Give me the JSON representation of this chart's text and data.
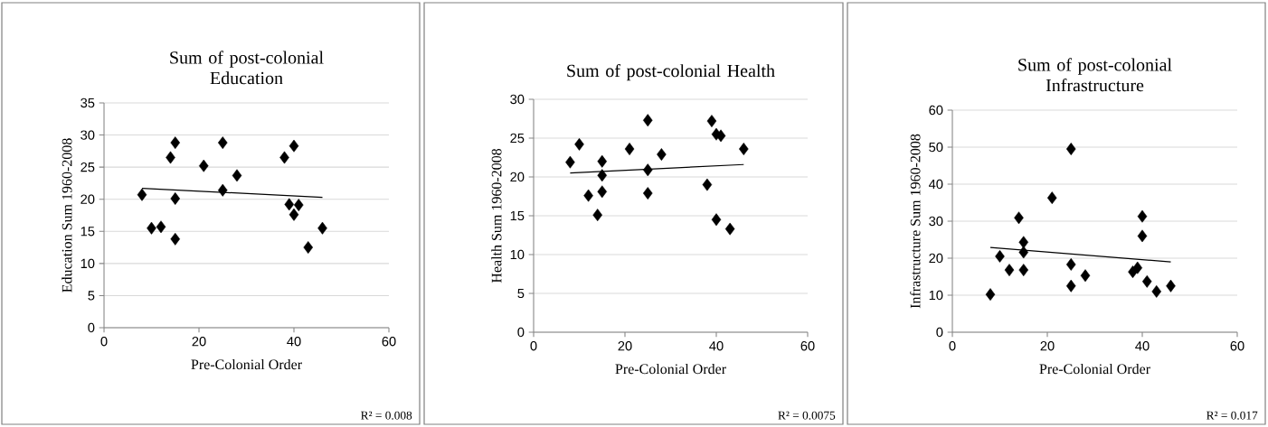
{
  "chart_data": [
    {
      "type": "scatter",
      "title": "Sum of post-colonial Education",
      "xlabel": "Pre-Colonial Order",
      "ylabel": "Education Sum 1960-2008",
      "xlim": [
        0,
        60
      ],
      "xticks": [
        0,
        20,
        40,
        60
      ],
      "ylim": [
        0,
        35
      ],
      "yticks": [
        0,
        5,
        10,
        15,
        20,
        25,
        30,
        35
      ],
      "grid": "y",
      "marker": "diamond",
      "annotations": [
        "R² = 0.008"
      ],
      "series": [
        {
          "color": "#000000",
          "x": [
            8,
            10,
            12,
            14,
            15,
            15,
            15,
            21,
            25,
            25,
            28,
            38,
            39,
            40,
            40,
            41,
            43,
            46
          ],
          "values": [
            20.7,
            15.5,
            15.7,
            26.5,
            28.8,
            20.1,
            13.8,
            25.2,
            28.8,
            21.4,
            23.7,
            26.5,
            19.2,
            28.3,
            17.6,
            19.1,
            12.5,
            15.5
          ]
        },
        {
          "type": "line",
          "marker": "none",
          "color": "#000000",
          "x": [
            8,
            46
          ],
          "values": [
            21.7,
            20.3
          ]
        }
      ]
    },
    {
      "type": "scatter",
      "title": "Sum of post-colonial Health",
      "xlabel": "Pre-Colonial Order",
      "ylabel": "Health Sum 1960-2008",
      "xlim": [
        0,
        60
      ],
      "xticks": [
        0,
        20,
        40,
        60
      ],
      "ylim": [
        0,
        30
      ],
      "yticks": [
        0,
        5,
        10,
        15,
        20,
        25,
        30
      ],
      "grid": "y",
      "marker": "diamond",
      "annotations": [
        "R² = 0.0075"
      ],
      "series": [
        {
          "color": "#000000",
          "x": [
            8,
            10,
            12,
            14,
            15,
            15,
            15,
            21,
            25,
            25,
            25,
            28,
            38,
            39,
            40,
            41,
            40,
            43,
            46
          ],
          "values": [
            21.9,
            24.2,
            17.6,
            15.1,
            22.0,
            20.2,
            18.1,
            23.6,
            27.3,
            20.9,
            17.9,
            22.9,
            19.0,
            27.2,
            25.5,
            25.3,
            14.5,
            13.3,
            23.6
          ]
        },
        {
          "type": "line",
          "marker": "none",
          "color": "#000000",
          "x": [
            8,
            46
          ],
          "values": [
            20.5,
            21.6
          ]
        }
      ]
    },
    {
      "type": "scatter",
      "title": "Sum of post-colonial Infrastructure",
      "xlabel": "Pre-Colonial Order",
      "ylabel": "Infrastructure Sum 1960-2008",
      "xlim": [
        0,
        60
      ],
      "xticks": [
        0,
        20,
        40,
        60
      ],
      "ylim": [
        0,
        60
      ],
      "yticks": [
        0,
        10,
        20,
        30,
        40,
        50,
        60
      ],
      "grid": "y",
      "marker": "diamond",
      "annotations": [
        "R² = 0.017"
      ],
      "series": [
        {
          "color": "#000000",
          "x": [
            8,
            10,
            12,
            14,
            15,
            15,
            15,
            21,
            25,
            25,
            25,
            28,
            38,
            39,
            40,
            40,
            41,
            43,
            46
          ],
          "values": [
            10.2,
            20.5,
            16.8,
            30.9,
            24.3,
            21.6,
            16.8,
            36.3,
            49.5,
            18.3,
            12.5,
            15.3,
            16.3,
            17.4,
            31.3,
            26.0,
            13.7,
            11.0,
            12.5
          ]
        },
        {
          "type": "line",
          "marker": "none",
          "color": "#000000",
          "x": [
            8,
            46
          ],
          "values": [
            22.9,
            19.0
          ]
        }
      ]
    }
  ]
}
